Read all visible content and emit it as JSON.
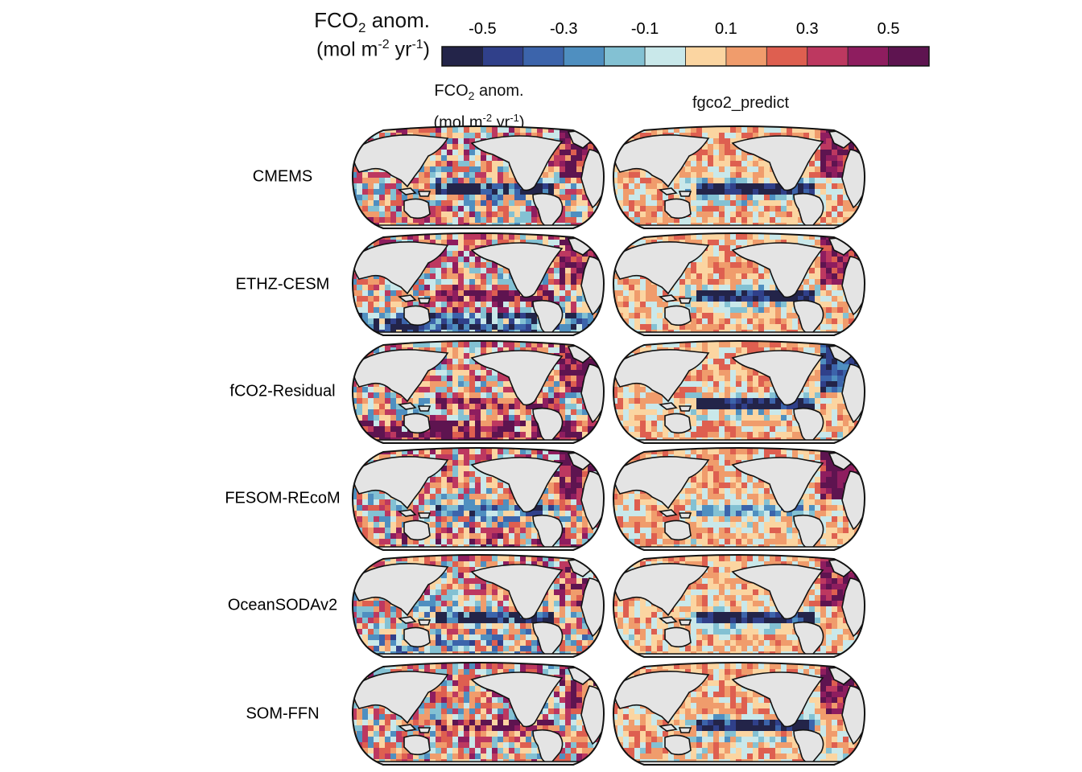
{
  "colorbar": {
    "title_main": "FCO",
    "title_sub": "2",
    "title_rest": " anom.",
    "units_pre": "(mol m",
    "units_exp1": "-2",
    "units_mid": " yr",
    "units_exp2": "-1",
    "units_post": ")",
    "ticks": [
      "-0.5",
      "-0.3",
      "-0.1",
      "0.1",
      "0.3",
      "0.5"
    ],
    "bins": [
      -0.6,
      -0.5,
      -0.4,
      -0.3,
      -0.2,
      -0.1,
      0.0,
      0.1,
      0.2,
      0.3,
      0.4,
      0.5,
      0.6
    ],
    "colors": [
      "#232449",
      "#30408a",
      "#3c64ab",
      "#4f8fc0",
      "#83c1d3",
      "#c9e8ea",
      "#fbd5a1",
      "#f09c6c",
      "#de5f50",
      "#bd3860",
      "#8e1d5f",
      "#5e1450"
    ]
  },
  "columns": {
    "left": {
      "line1_main": "FCO",
      "line1_sub": "2",
      "line1_rest": " anom.",
      "line2_pre": "(mol m",
      "line2_exp1": "-2",
      "line2_mid": " yr",
      "line2_exp2": "-1",
      "line2_post": ")"
    },
    "right": {
      "title": "fgco2_predict"
    }
  },
  "rows": [
    {
      "label": "CMEMS"
    },
    {
      "label": "ETHZ-CESM"
    },
    {
      "label": "fCO2-Residual"
    },
    {
      "label": "FESOM-REcoM"
    },
    {
      "label": "OceanSODAv2"
    },
    {
      "label": "SOM-FFN"
    }
  ],
  "chart_data": {
    "type": "heatmap",
    "description_type": "grid of global ocean maps (Pacific-centred projection)",
    "colorbar_range": [
      -0.6,
      0.6
    ],
    "colorbar_ticks": [
      -0.5,
      -0.3,
      -0.1,
      0.1,
      0.3,
      0.5
    ],
    "panels": {
      "CMEMS": {
        "observed_pattern": "positive North Atlantic, negative equatorial Pacific",
        "eq_pacific_left": -0.6,
        "eq_pacific_right": -0.6,
        "north_atlantic_left": 0.5,
        "north_atlantic_right": 0.5,
        "southern_left": 0.1,
        "southern_right": 0.1
      },
      "ETHZ-CESM": {
        "eq_pacific_left": 0.5,
        "eq_pacific_right": -0.6,
        "north_atlantic_left": 0.5,
        "north_atlantic_right": 0.5,
        "southern_left": -0.4,
        "southern_right": 0.1
      },
      "fCO2-Residual": {
        "eq_pacific_left": 0.4,
        "eq_pacific_right": -0.6,
        "north_atlantic_left": 0.5,
        "north_atlantic_right": -0.4,
        "southern_left": 0.5,
        "southern_right": 0.1
      },
      "FESOM-REcoM": {
        "eq_pacific_left": -0.3,
        "eq_pacific_right": -0.2,
        "north_atlantic_left": 0.5,
        "north_atlantic_right": 0.6,
        "southern_left": 0.2,
        "southern_right": 0.1
      },
      "OceanSODAv2": {
        "eq_pacific_left": -0.6,
        "eq_pacific_right": -0.6,
        "north_atlantic_left": 0.3,
        "north_atlantic_right": 0.5,
        "southern_left": -0.1,
        "southern_right": 0.1
      },
      "SOM-FFN": {
        "eq_pacific_left": 0.4,
        "eq_pacific_right": -0.6,
        "north_atlantic_left": 0.3,
        "north_atlantic_right": 0.5,
        "southern_left": 0.1,
        "southern_right": 0.1
      }
    }
  }
}
